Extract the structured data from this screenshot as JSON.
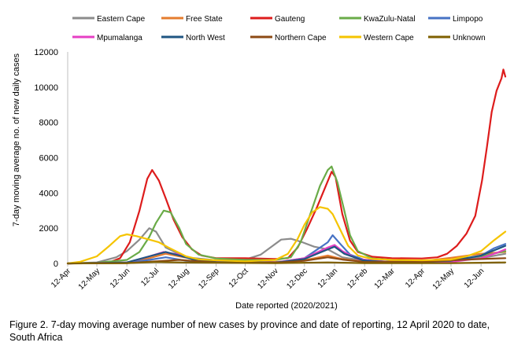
{
  "caption": "Figure 2. 7-day moving average number of new cases by province and date of reporting, 12 April 2020 to date, South Africa",
  "chart_data": {
    "type": "line",
    "xlabel": "Date reported (2020/2021)",
    "ylabel": "7-day moving average no. of new daily cases",
    "ylim": [
      0,
      12000
    ],
    "yticks": [
      0,
      2000,
      4000,
      6000,
      8000,
      10000,
      12000
    ],
    "ytick_labels": [
      "0",
      "2000",
      "4000",
      "6000",
      "8000",
      "10000",
      "12000"
    ],
    "xticks": [
      "2020-04-12",
      "2020-05-12",
      "2020-06-12",
      "2020-07-12",
      "2020-08-12",
      "2020-09-12",
      "2020-10-12",
      "2020-11-12",
      "2020-12-12",
      "2021-01-12",
      "2021-02-12",
      "2021-03-12",
      "2021-04-12",
      "2021-05-12",
      "2021-06-12"
    ],
    "xtick_labels": [
      "12-Apr",
      "12-May",
      "12-Jun",
      "12-Jul",
      "12-Aug",
      "12-Sep",
      "12-Oct",
      "12-Nov",
      "12-Dec",
      "12-Jan",
      "12-Feb",
      "12-Mar",
      "12-Apr",
      "12-May",
      "12-Jun"
    ],
    "xlim": [
      "2020-04-12",
      "2021-07-07"
    ],
    "legend_position": "top",
    "series": [
      {
        "name": "Eastern Cape",
        "color": "#8c8c8c",
        "points": [
          [
            "2020-04-12",
            0
          ],
          [
            "2020-05-12",
            60
          ],
          [
            "2020-06-01",
            350
          ],
          [
            "2020-06-12",
            700
          ],
          [
            "2020-06-25",
            1350
          ],
          [
            "2020-07-05",
            2000
          ],
          [
            "2020-07-12",
            1800
          ],
          [
            "2020-07-22",
            900
          ],
          [
            "2020-08-12",
            350
          ],
          [
            "2020-09-12",
            180
          ],
          [
            "2020-10-12",
            220
          ],
          [
            "2020-10-28",
            500
          ],
          [
            "2020-11-08",
            950
          ],
          [
            "2020-11-18",
            1350
          ],
          [
            "2020-11-28",
            1400
          ],
          [
            "2020-12-10",
            1200
          ],
          [
            "2020-12-22",
            950
          ],
          [
            "2021-01-05",
            800
          ],
          [
            "2021-01-20",
            350
          ],
          [
            "2021-02-12",
            150
          ],
          [
            "2021-03-12",
            90
          ],
          [
            "2021-04-12",
            80
          ],
          [
            "2021-05-12",
            180
          ],
          [
            "2021-06-12",
            300
          ],
          [
            "2021-07-07",
            550
          ]
        ]
      },
      {
        "name": "Free State",
        "color": "#e57c2e",
        "points": [
          [
            "2020-04-12",
            0
          ],
          [
            "2020-06-12",
            60
          ],
          [
            "2020-07-05",
            300
          ],
          [
            "2020-07-22",
            550
          ],
          [
            "2020-08-05",
            400
          ],
          [
            "2020-08-20",
            250
          ],
          [
            "2020-09-12",
            90
          ],
          [
            "2020-10-12",
            60
          ],
          [
            "2020-11-12",
            90
          ],
          [
            "2020-12-12",
            180
          ],
          [
            "2021-01-05",
            450
          ],
          [
            "2021-01-20",
            250
          ],
          [
            "2021-02-12",
            100
          ],
          [
            "2021-04-12",
            130
          ],
          [
            "2021-05-12",
            320
          ],
          [
            "2021-06-12",
            550
          ],
          [
            "2021-07-07",
            650
          ]
        ]
      },
      {
        "name": "Gauteng",
        "color": "#dd1c1c",
        "points": [
          [
            "2020-04-12",
            0
          ],
          [
            "2020-05-12",
            30
          ],
          [
            "2020-05-25",
            60
          ],
          [
            "2020-06-05",
            300
          ],
          [
            "2020-06-15",
            1200
          ],
          [
            "2020-06-25",
            3000
          ],
          [
            "2020-07-03",
            4800
          ],
          [
            "2020-07-08",
            5300
          ],
          [
            "2020-07-15",
            4700
          ],
          [
            "2020-07-22",
            3700
          ],
          [
            "2020-07-30",
            2500
          ],
          [
            "2020-08-08",
            1500
          ],
          [
            "2020-08-18",
            800
          ],
          [
            "2020-08-28",
            450
          ],
          [
            "2020-09-12",
            300
          ],
          [
            "2020-10-12",
            300
          ],
          [
            "2020-11-12",
            250
          ],
          [
            "2020-11-25",
            300
          ],
          [
            "2020-12-05",
            900
          ],
          [
            "2020-12-15",
            2000
          ],
          [
            "2020-12-25",
            3200
          ],
          [
            "2021-01-03",
            4400
          ],
          [
            "2021-01-09",
            5200
          ],
          [
            "2021-01-13",
            4900
          ],
          [
            "2021-01-20",
            2800
          ],
          [
            "2021-01-28",
            1300
          ],
          [
            "2021-02-05",
            650
          ],
          [
            "2021-02-20",
            380
          ],
          [
            "2021-03-12",
            300
          ],
          [
            "2021-04-12",
            280
          ],
          [
            "2021-04-28",
            350
          ],
          [
            "2021-05-08",
            550
          ],
          [
            "2021-05-18",
            1000
          ],
          [
            "2021-05-28",
            1700
          ],
          [
            "2021-06-06",
            2700
          ],
          [
            "2021-06-13",
            4700
          ],
          [
            "2021-06-18",
            6600
          ],
          [
            "2021-06-23",
            8600
          ],
          [
            "2021-06-28",
            9800
          ],
          [
            "2021-07-03",
            10500
          ],
          [
            "2021-07-05",
            11000
          ],
          [
            "2021-07-07",
            10600
          ]
        ]
      },
      {
        "name": "KwaZulu-Natal",
        "color": "#6aab48",
        "points": [
          [
            "2020-04-12",
            0
          ],
          [
            "2020-05-12",
            40
          ],
          [
            "2020-06-12",
            200
          ],
          [
            "2020-06-25",
            650
          ],
          [
            "2020-07-05",
            1500
          ],
          [
            "2020-07-12",
            2300
          ],
          [
            "2020-07-20",
            3000
          ],
          [
            "2020-07-27",
            2900
          ],
          [
            "2020-08-05",
            2000
          ],
          [
            "2020-08-12",
            1100
          ],
          [
            "2020-08-25",
            500
          ],
          [
            "2020-09-12",
            280
          ],
          [
            "2020-10-12",
            200
          ],
          [
            "2020-11-12",
            200
          ],
          [
            "2020-11-28",
            350
          ],
          [
            "2020-12-08",
            1200
          ],
          [
            "2020-12-18",
            2800
          ],
          [
            "2020-12-28",
            4400
          ],
          [
            "2021-01-05",
            5300
          ],
          [
            "2021-01-09",
            5500
          ],
          [
            "2021-01-15",
            4600
          ],
          [
            "2021-01-22",
            3000
          ],
          [
            "2021-01-28",
            1600
          ],
          [
            "2021-02-05",
            700
          ],
          [
            "2021-02-20",
            280
          ],
          [
            "2021-03-12",
            200
          ],
          [
            "2021-04-12",
            150
          ],
          [
            "2021-05-12",
            200
          ],
          [
            "2021-06-12",
            400
          ],
          [
            "2021-07-07",
            700
          ]
        ]
      },
      {
        "name": "Limpopo",
        "color": "#4772c4",
        "points": [
          [
            "2020-04-12",
            0
          ],
          [
            "2020-06-12",
            40
          ],
          [
            "2020-07-05",
            200
          ],
          [
            "2020-07-22",
            350
          ],
          [
            "2020-08-12",
            150
          ],
          [
            "2020-09-12",
            50
          ],
          [
            "2020-11-12",
            40
          ],
          [
            "2020-12-12",
            300
          ],
          [
            "2021-01-05",
            1200
          ],
          [
            "2021-01-10",
            1600
          ],
          [
            "2021-01-18",
            1100
          ],
          [
            "2021-01-28",
            500
          ],
          [
            "2021-02-12",
            200
          ],
          [
            "2021-03-12",
            80
          ],
          [
            "2021-05-12",
            100
          ],
          [
            "2021-06-12",
            450
          ],
          [
            "2021-06-25",
            850
          ],
          [
            "2021-07-07",
            1100
          ]
        ]
      },
      {
        "name": "Mpumalanga",
        "color": "#e63fc4",
        "points": [
          [
            "2020-04-12",
            0
          ],
          [
            "2020-06-12",
            50
          ],
          [
            "2020-07-05",
            400
          ],
          [
            "2020-07-20",
            650
          ],
          [
            "2020-08-05",
            500
          ],
          [
            "2020-08-20",
            250
          ],
          [
            "2020-09-12",
            90
          ],
          [
            "2020-11-12",
            50
          ],
          [
            "2020-12-12",
            300
          ],
          [
            "2021-01-05",
            900
          ],
          [
            "2021-01-12",
            1050
          ],
          [
            "2021-01-20",
            700
          ],
          [
            "2021-02-05",
            250
          ],
          [
            "2021-03-12",
            60
          ],
          [
            "2021-05-12",
            80
          ],
          [
            "2021-06-12",
            300
          ],
          [
            "2021-06-28",
            600
          ],
          [
            "2021-07-07",
            800
          ]
        ]
      },
      {
        "name": "North West",
        "color": "#1f5582",
        "points": [
          [
            "2020-04-12",
            0
          ],
          [
            "2020-06-12",
            60
          ],
          [
            "2020-07-05",
            400
          ],
          [
            "2020-07-22",
            650
          ],
          [
            "2020-08-05",
            450
          ],
          [
            "2020-08-20",
            220
          ],
          [
            "2020-09-12",
            80
          ],
          [
            "2020-11-12",
            50
          ],
          [
            "2020-12-12",
            250
          ],
          [
            "2021-01-05",
            800
          ],
          [
            "2021-01-12",
            950
          ],
          [
            "2021-01-22",
            550
          ],
          [
            "2021-02-10",
            180
          ],
          [
            "2021-03-12",
            60
          ],
          [
            "2021-05-12",
            150
          ],
          [
            "2021-06-12",
            450
          ],
          [
            "2021-06-28",
            800
          ],
          [
            "2021-07-07",
            1000
          ]
        ]
      },
      {
        "name": "Northern Cape",
        "color": "#8c4a14",
        "points": [
          [
            "2020-04-12",
            0
          ],
          [
            "2020-06-12",
            20
          ],
          [
            "2020-07-12",
            120
          ],
          [
            "2020-08-05",
            200
          ],
          [
            "2020-08-25",
            120
          ],
          [
            "2020-09-12",
            60
          ],
          [
            "2020-11-12",
            40
          ],
          [
            "2020-12-12",
            150
          ],
          [
            "2021-01-05",
            350
          ],
          [
            "2021-01-20",
            220
          ],
          [
            "2021-02-12",
            80
          ],
          [
            "2021-04-12",
            100
          ],
          [
            "2021-05-12",
            180
          ],
          [
            "2021-06-12",
            250
          ],
          [
            "2021-07-07",
            300
          ]
        ]
      },
      {
        "name": "Western Cape",
        "color": "#f5c400",
        "points": [
          [
            "2020-04-12",
            0
          ],
          [
            "2020-04-25",
            100
          ],
          [
            "2020-05-12",
            400
          ],
          [
            "2020-05-25",
            1000
          ],
          [
            "2020-06-05",
            1550
          ],
          [
            "2020-06-12",
            1650
          ],
          [
            "2020-06-22",
            1550
          ],
          [
            "2020-07-05",
            1350
          ],
          [
            "2020-07-15",
            1200
          ],
          [
            "2020-07-25",
            900
          ],
          [
            "2020-08-12",
            400
          ],
          [
            "2020-08-25",
            230
          ],
          [
            "2020-09-12",
            180
          ],
          [
            "2020-10-12",
            120
          ],
          [
            "2020-11-12",
            200
          ],
          [
            "2020-11-25",
            550
          ],
          [
            "2020-12-05",
            1400
          ],
          [
            "2020-12-12",
            2200
          ],
          [
            "2020-12-20",
            2900
          ],
          [
            "2020-12-28",
            3200
          ],
          [
            "2021-01-05",
            3100
          ],
          [
            "2021-01-10",
            2800
          ],
          [
            "2021-01-18",
            1900
          ],
          [
            "2021-01-26",
            1000
          ],
          [
            "2021-02-05",
            450
          ],
          [
            "2021-02-20",
            250
          ],
          [
            "2021-03-12",
            200
          ],
          [
            "2021-04-12",
            180
          ],
          [
            "2021-05-12",
            220
          ],
          [
            "2021-05-28",
            400
          ],
          [
            "2021-06-12",
            700
          ],
          [
            "2021-06-25",
            1300
          ],
          [
            "2021-07-07",
            1800
          ]
        ]
      },
      {
        "name": "Unknown",
        "color": "#7f6000",
        "points": [
          [
            "2020-04-12",
            0
          ],
          [
            "2020-06-12",
            20
          ],
          [
            "2020-07-12",
            80
          ],
          [
            "2020-08-12",
            50
          ],
          [
            "2020-11-12",
            20
          ],
          [
            "2021-01-05",
            60
          ],
          [
            "2021-02-12",
            20
          ],
          [
            "2021-05-12",
            20
          ],
          [
            "2021-06-12",
            40
          ],
          [
            "2021-07-07",
            60
          ]
        ]
      }
    ]
  }
}
